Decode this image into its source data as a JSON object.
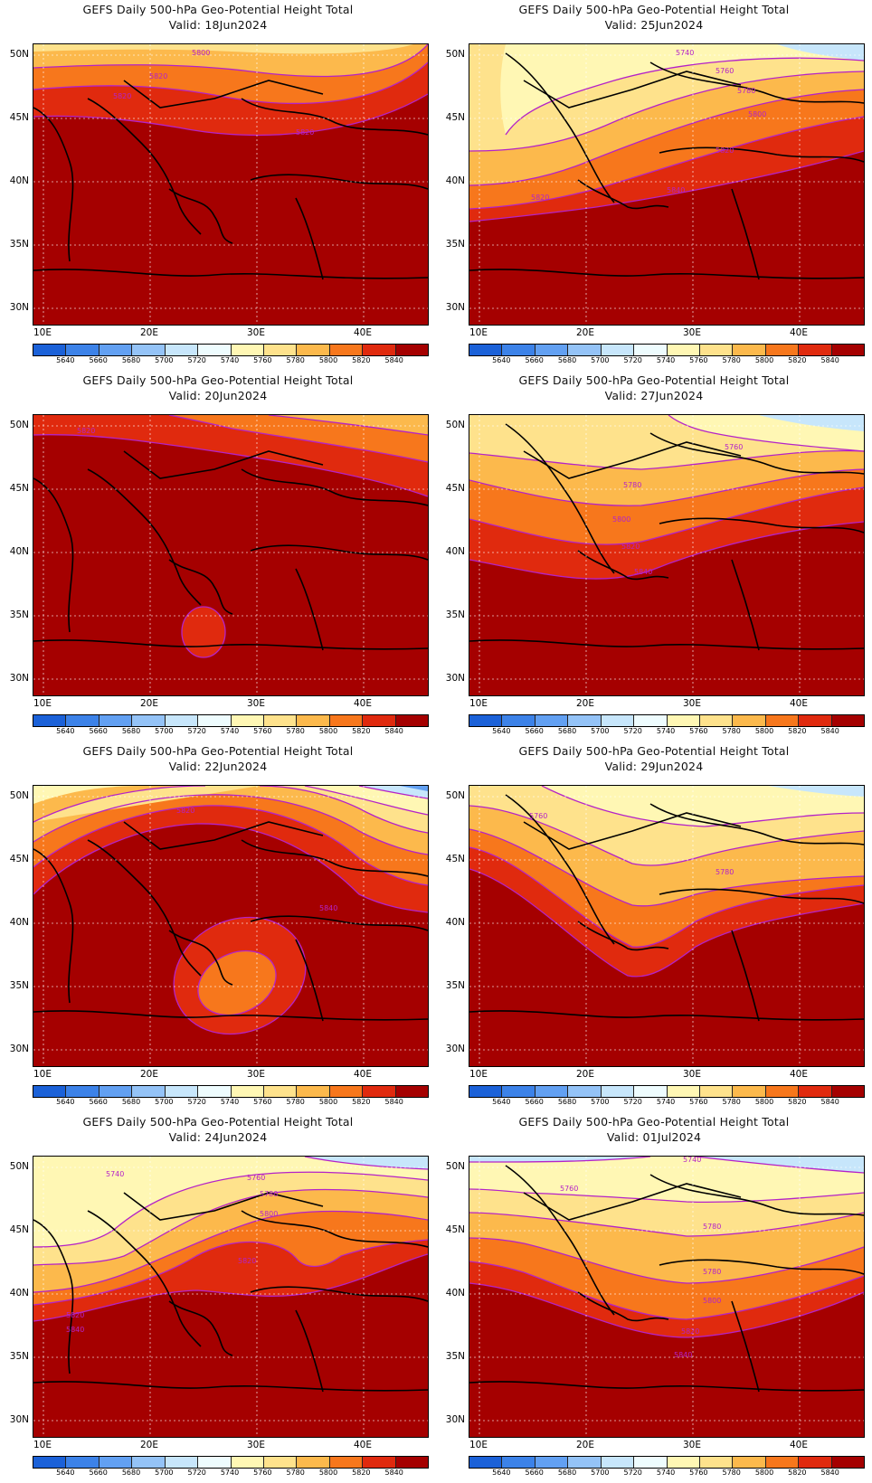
{
  "colorbar": {
    "labels": [
      "5640",
      "5660",
      "5680",
      "5700",
      "5720",
      "5740",
      "5760",
      "5780",
      "5800",
      "5820",
      "5840"
    ],
    "colors": [
      "#1b61d8",
      "#3c82e8",
      "#62a0f2",
      "#94c3f7",
      "#c7e6fb",
      "#eefcfe",
      "#fff7b4",
      "#fee28c",
      "#fcb94c",
      "#f7771c",
      "#e02a0e",
      "#a50000"
    ]
  },
  "axes": {
    "lat_labels": [
      "50N",
      "45N",
      "40N",
      "35N",
      "30N"
    ],
    "lon_labels": [
      "10E",
      "20E",
      "30E",
      "40E"
    ]
  },
  "panels": [
    {
      "title": "GEFS Daily 500-hPa Geo-Potential Height Total",
      "valid": "Valid: 18Jun2024",
      "contour_labels": [
        "5800",
        "5820",
        "5820",
        "5820"
      ]
    },
    {
      "title": "GEFS Daily 500-hPa Geo-Potential Height Total",
      "valid": "Valid: 25Jun2024",
      "contour_labels": [
        "5740",
        "5760",
        "5780",
        "5800",
        "5820",
        "5820",
        "5840"
      ]
    },
    {
      "title": "GEFS Daily 500-hPa Geo-Potential Height Total",
      "valid": "Valid: 20Jun2024",
      "contour_labels": [
        "5820"
      ]
    },
    {
      "title": "GEFS Daily 500-hPa Geo-Potential Height Total",
      "valid": "Valid: 27Jun2024",
      "contour_labels": [
        "5760",
        "5780",
        "5800",
        "5820",
        "5840"
      ]
    },
    {
      "title": "GEFS Daily 500-hPa Geo-Potential Height Total",
      "valid": "Valid: 22Jun2024",
      "contour_labels": [
        "5820",
        "5840"
      ]
    },
    {
      "title": "GEFS Daily 500-hPa Geo-Potential Height Total",
      "valid": "Valid: 29Jun2024",
      "contour_labels": [
        "5760",
        "5780"
      ]
    },
    {
      "title": "GEFS Daily 500-hPa Geo-Potential Height Total",
      "valid": "Valid: 24Jun2024",
      "contour_labels": [
        "5740",
        "5760",
        "5780",
        "5800",
        "5820",
        "5820",
        "5840"
      ]
    },
    {
      "title": "GEFS Daily 500-hPa Geo-Potential Height Total",
      "valid": "Valid: 01Jul2024",
      "contour_labels": [
        "5740",
        "5760",
        "5780",
        "5780",
        "5800",
        "5820",
        "5840"
      ]
    }
  ]
}
